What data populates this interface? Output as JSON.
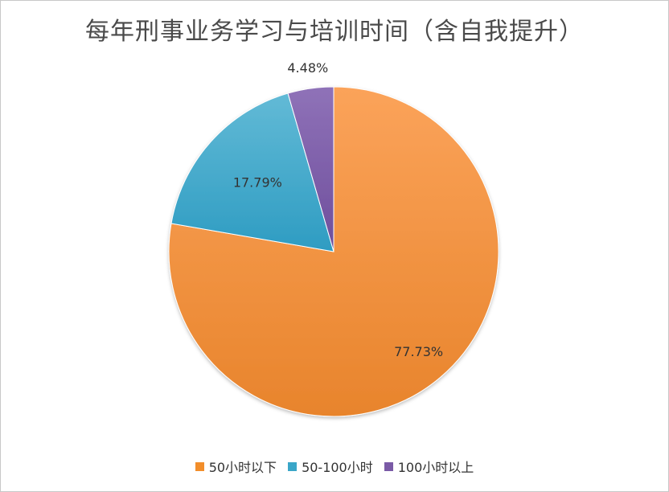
{
  "chart_data": {
    "type": "pie",
    "title": "每年刑事业务学习与培训时间（含自我提升）",
    "categories": [
      "50小时以下",
      "50-100小时",
      "100小时以上"
    ],
    "values": [
      77.73,
      17.79,
      4.48
    ],
    "labels": [
      "77.73%",
      "17.79%",
      "4.48%"
    ],
    "colors": [
      "#F28E2B",
      "#3AA6C8",
      "#7A5AA6"
    ],
    "legend_position": "bottom"
  }
}
